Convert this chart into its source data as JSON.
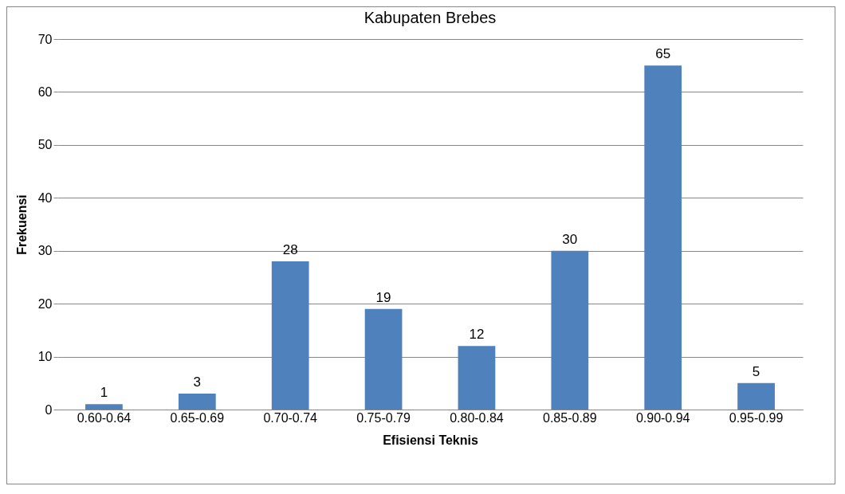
{
  "chart_data": {
    "type": "bar",
    "title": "Kabupaten Brebes",
    "xlabel": "Efisiensi Teknis",
    "ylabel": "Frekuensi",
    "categories": [
      "0.60-0.64",
      "0.65-0.69",
      "0.70-0.74",
      "0.75-0.79",
      "0.80-0.84",
      "0.85-0.89",
      "0.90-0.94",
      "0.95-0.99"
    ],
    "values": [
      1,
      3,
      28,
      19,
      12,
      30,
      65,
      5
    ],
    "color": "#4f81bd",
    "ylim": [
      0,
      70
    ],
    "yticks": [
      0,
      10,
      20,
      30,
      40,
      50,
      60,
      70
    ],
    "grid": "y",
    "data_labels": true
  }
}
